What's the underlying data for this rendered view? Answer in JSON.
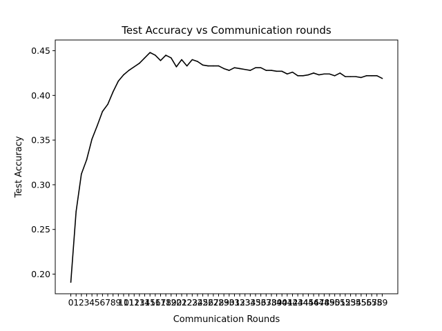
{
  "chart_data": {
    "type": "line",
    "title": "Test Accuracy vs Communication rounds",
    "xlabel": "Communication Rounds",
    "ylabel": "Test Accuracy",
    "x": [
      0,
      1,
      2,
      3,
      4,
      5,
      6,
      7,
      8,
      9,
      10,
      11,
      12,
      13,
      14,
      15,
      16,
      17,
      18,
      19,
      20,
      21,
      22,
      23,
      24,
      25,
      26,
      27,
      28,
      29,
      30,
      31,
      32,
      33,
      34,
      35,
      36,
      37,
      38,
      39,
      40,
      41,
      42,
      43,
      44,
      45,
      46,
      47,
      48,
      49,
      50,
      51,
      52,
      53,
      54,
      55,
      56,
      57,
      58,
      59
    ],
    "xticks": [
      "0",
      "1",
      "2",
      "3",
      "4",
      "5",
      "6",
      "7",
      "8",
      "9",
      "10",
      "11",
      "12",
      "13",
      "14",
      "15",
      "16",
      "17",
      "18",
      "19",
      "20",
      "21",
      "22",
      "23",
      "24",
      "25",
      "26",
      "27",
      "28",
      "29",
      "30",
      "31",
      "32",
      "33",
      "34",
      "35",
      "36",
      "37",
      "38",
      "39",
      "40",
      "41",
      "42",
      "43",
      "44",
      "45",
      "46",
      "47",
      "48",
      "49",
      "50",
      "51",
      "52",
      "53",
      "54",
      "55",
      "56",
      "57",
      "58",
      "59"
    ],
    "xlim": [
      -2.95,
      61.95
    ],
    "ylim": [
      0.178,
      0.462
    ],
    "yticks": [
      0.2,
      0.25,
      0.3,
      0.35,
      0.4,
      0.45
    ],
    "ytick_labels": [
      "0.20",
      "0.25",
      "0.30",
      "0.35",
      "0.40",
      "0.45"
    ],
    "series": [
      {
        "color": "#000000",
        "values": [
          0.191,
          0.27,
          0.312,
          0.328,
          0.351,
          0.366,
          0.382,
          0.39,
          0.404,
          0.416,
          0.423,
          0.428,
          0.432,
          0.436,
          0.442,
          0.448,
          0.445,
          0.439,
          0.445,
          0.442,
          0.432,
          0.44,
          0.433,
          0.44,
          0.438,
          0.434,
          0.433,
          0.433,
          0.433,
          0.43,
          0.428,
          0.431,
          0.43,
          0.429,
          0.428,
          0.431,
          0.431,
          0.428,
          0.428,
          0.427,
          0.427,
          0.424,
          0.426,
          0.422,
          0.422,
          0.423,
          0.425,
          0.423,
          0.424,
          0.424,
          0.422,
          0.425,
          0.421,
          0.421,
          0.421,
          0.42,
          0.422,
          0.422,
          0.422,
          0.419
        ]
      }
    ],
    "grid": false,
    "legend": "none"
  }
}
